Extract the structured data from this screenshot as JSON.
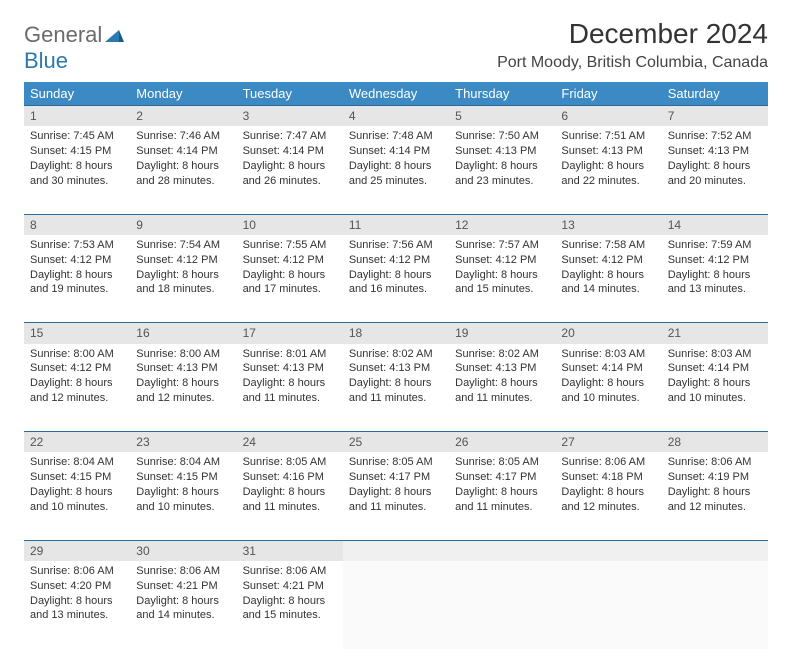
{
  "logo": {
    "word1": "General",
    "word2": "Blue"
  },
  "title": "December 2024",
  "location": "Port Moody, British Columbia, Canada",
  "colors": {
    "header_bg": "#3b8ac4",
    "header_text": "#ffffff",
    "daynum_bg": "#e6e6e6",
    "row_border": "#2a6a9a",
    "logo_gray": "#6b6b6b",
    "logo_blue": "#2a7ab0"
  },
  "day_headers": [
    "Sunday",
    "Monday",
    "Tuesday",
    "Wednesday",
    "Thursday",
    "Friday",
    "Saturday"
  ],
  "weeks": [
    [
      {
        "n": "1",
        "sr": "7:45 AM",
        "ss": "4:15 PM",
        "dl": "8 hours and 30 minutes."
      },
      {
        "n": "2",
        "sr": "7:46 AM",
        "ss": "4:14 PM",
        "dl": "8 hours and 28 minutes."
      },
      {
        "n": "3",
        "sr": "7:47 AM",
        "ss": "4:14 PM",
        "dl": "8 hours and 26 minutes."
      },
      {
        "n": "4",
        "sr": "7:48 AM",
        "ss": "4:14 PM",
        "dl": "8 hours and 25 minutes."
      },
      {
        "n": "5",
        "sr": "7:50 AM",
        "ss": "4:13 PM",
        "dl": "8 hours and 23 minutes."
      },
      {
        "n": "6",
        "sr": "7:51 AM",
        "ss": "4:13 PM",
        "dl": "8 hours and 22 minutes."
      },
      {
        "n": "7",
        "sr": "7:52 AM",
        "ss": "4:13 PM",
        "dl": "8 hours and 20 minutes."
      }
    ],
    [
      {
        "n": "8",
        "sr": "7:53 AM",
        "ss": "4:12 PM",
        "dl": "8 hours and 19 minutes."
      },
      {
        "n": "9",
        "sr": "7:54 AM",
        "ss": "4:12 PM",
        "dl": "8 hours and 18 minutes."
      },
      {
        "n": "10",
        "sr": "7:55 AM",
        "ss": "4:12 PM",
        "dl": "8 hours and 17 minutes."
      },
      {
        "n": "11",
        "sr": "7:56 AM",
        "ss": "4:12 PM",
        "dl": "8 hours and 16 minutes."
      },
      {
        "n": "12",
        "sr": "7:57 AM",
        "ss": "4:12 PM",
        "dl": "8 hours and 15 minutes."
      },
      {
        "n": "13",
        "sr": "7:58 AM",
        "ss": "4:12 PM",
        "dl": "8 hours and 14 minutes."
      },
      {
        "n": "14",
        "sr": "7:59 AM",
        "ss": "4:12 PM",
        "dl": "8 hours and 13 minutes."
      }
    ],
    [
      {
        "n": "15",
        "sr": "8:00 AM",
        "ss": "4:12 PM",
        "dl": "8 hours and 12 minutes."
      },
      {
        "n": "16",
        "sr": "8:00 AM",
        "ss": "4:13 PM",
        "dl": "8 hours and 12 minutes."
      },
      {
        "n": "17",
        "sr": "8:01 AM",
        "ss": "4:13 PM",
        "dl": "8 hours and 11 minutes."
      },
      {
        "n": "18",
        "sr": "8:02 AM",
        "ss": "4:13 PM",
        "dl": "8 hours and 11 minutes."
      },
      {
        "n": "19",
        "sr": "8:02 AM",
        "ss": "4:13 PM",
        "dl": "8 hours and 11 minutes."
      },
      {
        "n": "20",
        "sr": "8:03 AM",
        "ss": "4:14 PM",
        "dl": "8 hours and 10 minutes."
      },
      {
        "n": "21",
        "sr": "8:03 AM",
        "ss": "4:14 PM",
        "dl": "8 hours and 10 minutes."
      }
    ],
    [
      {
        "n": "22",
        "sr": "8:04 AM",
        "ss": "4:15 PM",
        "dl": "8 hours and 10 minutes."
      },
      {
        "n": "23",
        "sr": "8:04 AM",
        "ss": "4:15 PM",
        "dl": "8 hours and 10 minutes."
      },
      {
        "n": "24",
        "sr": "8:05 AM",
        "ss": "4:16 PM",
        "dl": "8 hours and 11 minutes."
      },
      {
        "n": "25",
        "sr": "8:05 AM",
        "ss": "4:17 PM",
        "dl": "8 hours and 11 minutes."
      },
      {
        "n": "26",
        "sr": "8:05 AM",
        "ss": "4:17 PM",
        "dl": "8 hours and 11 minutes."
      },
      {
        "n": "27",
        "sr": "8:06 AM",
        "ss": "4:18 PM",
        "dl": "8 hours and 12 minutes."
      },
      {
        "n": "28",
        "sr": "8:06 AM",
        "ss": "4:19 PM",
        "dl": "8 hours and 12 minutes."
      }
    ],
    [
      {
        "n": "29",
        "sr": "8:06 AM",
        "ss": "4:20 PM",
        "dl": "8 hours and 13 minutes."
      },
      {
        "n": "30",
        "sr": "8:06 AM",
        "ss": "4:21 PM",
        "dl": "8 hours and 14 minutes."
      },
      {
        "n": "31",
        "sr": "8:06 AM",
        "ss": "4:21 PM",
        "dl": "8 hours and 15 minutes."
      },
      null,
      null,
      null,
      null
    ]
  ],
  "labels": {
    "sunrise": "Sunrise: ",
    "sunset": "Sunset: ",
    "daylight": "Daylight: "
  }
}
